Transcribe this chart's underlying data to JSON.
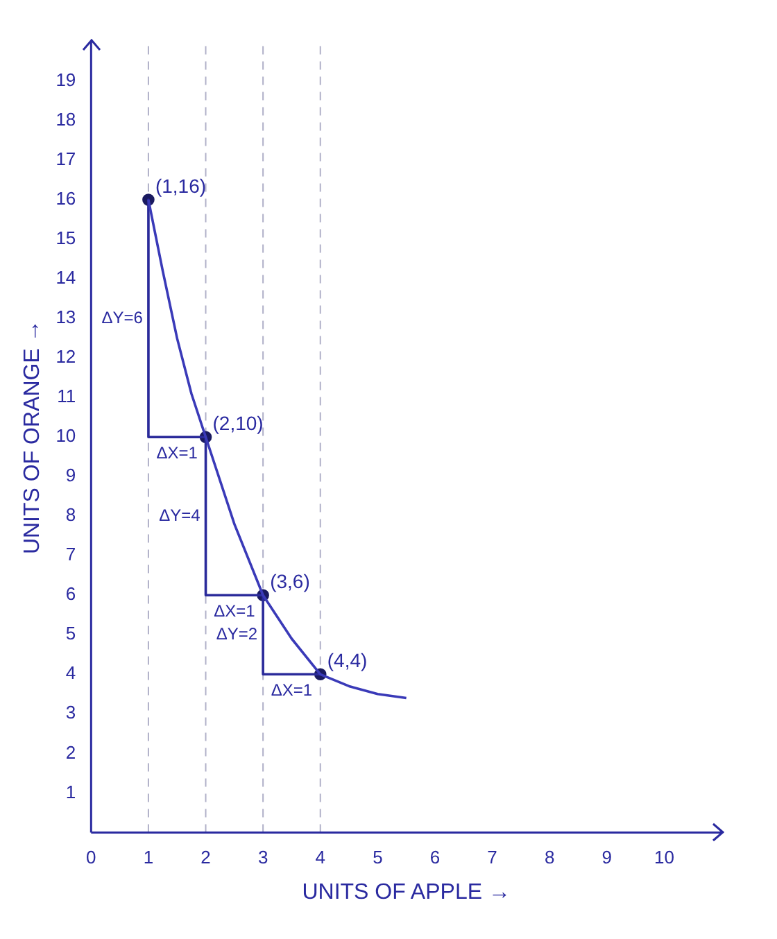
{
  "chart_data": {
    "type": "line",
    "xlabel": "UNITS OF APPLE →",
    "ylabel": "UNITS OF ORANGE →",
    "xlim": [
      0,
      11
    ],
    "ylim": [
      0,
      20
    ],
    "xticks": [
      0,
      1,
      2,
      3,
      4,
      5,
      6,
      7,
      8,
      9,
      10
    ],
    "yticks": [
      1,
      2,
      3,
      4,
      5,
      6,
      7,
      8,
      9,
      10,
      11,
      12,
      13,
      14,
      15,
      16,
      17,
      18,
      19
    ],
    "grid": false,
    "legend": false,
    "series": [
      {
        "color": "#3a3ab8",
        "x": [
          1,
          1.25,
          1.5,
          1.75,
          2,
          2.5,
          3,
          3.5,
          4,
          4.5,
          5,
          5.5
        ],
        "values": [
          16,
          14.2,
          12.5,
          11.1,
          10,
          7.8,
          6,
          4.9,
          4,
          3.7,
          3.5,
          3.4
        ]
      },
      {
        "color": "#2a2a9a",
        "x": [
          1,
          1,
          2,
          2,
          3,
          3,
          4
        ],
        "values": [
          16,
          10,
          10,
          6,
          6,
          4,
          4
        ]
      },
      {
        "type": "scatter",
        "marker": "circle",
        "color": "#1a1a60",
        "x": [
          1,
          2,
          3,
          4
        ],
        "values": [
          16,
          10,
          6,
          4
        ]
      }
    ],
    "ref_lines": [
      {
        "axis": "x",
        "value": 1,
        "line_style": "dashed",
        "color": "#b0b0c8"
      },
      {
        "axis": "x",
        "value": 2,
        "line_style": "dashed",
        "color": "#b0b0c8"
      },
      {
        "axis": "x",
        "value": 3,
        "line_style": "dashed",
        "color": "#b0b0c8"
      },
      {
        "axis": "x",
        "value": 4,
        "line_style": "dashed",
        "color": "#b0b0c8"
      }
    ],
    "annotations": [
      {
        "text": "(1,16)",
        "x": 1,
        "y": 16
      },
      {
        "text": "(2,10)",
        "x": 2,
        "y": 10
      },
      {
        "text": "(3,6)",
        "x": 3,
        "y": 6
      },
      {
        "text": "(4,4)",
        "x": 4,
        "y": 4
      },
      "ΔY=6",
      "ΔX=1",
      "ΔY=4",
      "ΔX=1",
      "ΔY=2",
      "ΔX=1"
    ]
  }
}
